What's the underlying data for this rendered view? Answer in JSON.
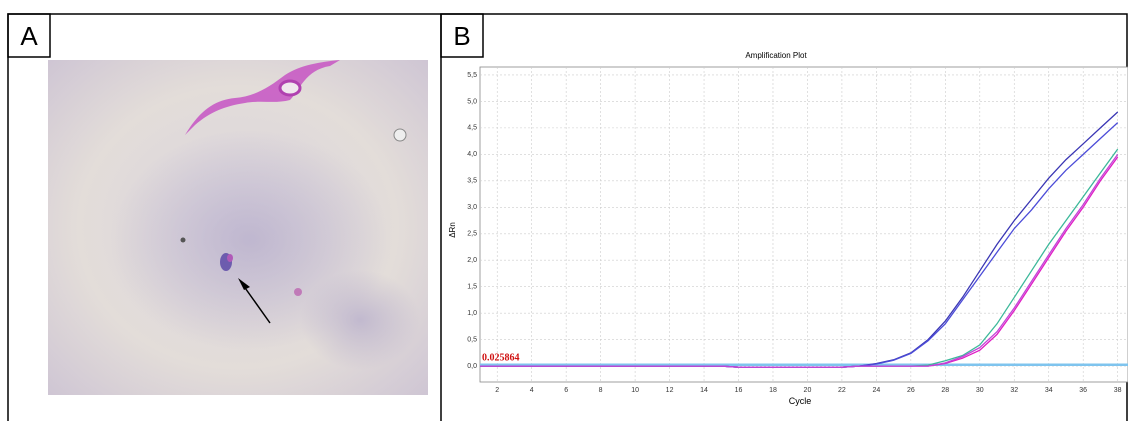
{
  "panel_labels": [
    "A",
    "B"
  ],
  "chart_data": {
    "type": "line",
    "title": "Amplification Plot",
    "x_label": "Cycle",
    "y_label": "ΔRn",
    "x": [
      1,
      2,
      3,
      4,
      5,
      6,
      7,
      8,
      9,
      10,
      11,
      12,
      13,
      14,
      15,
      16,
      17,
      18,
      19,
      20,
      21,
      22,
      23,
      24,
      25,
      26,
      27,
      28,
      29,
      30,
      31,
      32,
      33,
      34,
      35,
      36,
      37,
      38
    ],
    "series": [
      {
        "color": "#3a36b4",
        "values": [
          0,
          0,
          0,
          0,
          0,
          0,
          0,
          0,
          0,
          0,
          0,
          0,
          0,
          0,
          0,
          -0.02,
          -0.02,
          -0.02,
          -0.02,
          -0.02,
          -0.02,
          -0.02,
          0,
          0.05,
          0.12,
          0.25,
          0.5,
          0.85,
          1.3,
          1.8,
          2.3,
          2.75,
          3.15,
          3.55,
          3.9,
          4.2,
          4.5,
          4.8
        ]
      },
      {
        "color": "#4c4cd8",
        "values": [
          0,
          0,
          0,
          0,
          0,
          0,
          0,
          0,
          0,
          0,
          0,
          0,
          0,
          0,
          0,
          -0.02,
          -0.02,
          -0.02,
          -0.02,
          -0.02,
          -0.02,
          -0.02,
          0,
          0.04,
          0.11,
          0.24,
          0.48,
          0.8,
          1.25,
          1.7,
          2.15,
          2.6,
          2.95,
          3.35,
          3.7,
          4.0,
          4.3,
          4.6
        ]
      },
      {
        "color": "#3cb89a",
        "values": [
          0,
          0,
          0,
          0,
          0,
          0,
          0,
          0,
          0,
          0,
          0,
          0,
          0,
          0,
          0,
          -0.02,
          -0.02,
          -0.02,
          -0.02,
          -0.02,
          -0.02,
          -0.02,
          0,
          0,
          0,
          0,
          0.02,
          0.1,
          0.2,
          0.4,
          0.8,
          1.3,
          1.8,
          2.3,
          2.75,
          3.2,
          3.65,
          4.1
        ]
      },
      {
        "color": "#e01cc4",
        "values": [
          0,
          0,
          0,
          0,
          0,
          0,
          0,
          0,
          0,
          0,
          0,
          0,
          0,
          0,
          0,
          -0.02,
          -0.02,
          -0.02,
          -0.02,
          -0.02,
          -0.02,
          -0.02,
          0,
          0,
          0,
          0,
          0,
          0.05,
          0.15,
          0.3,
          0.6,
          1.05,
          1.55,
          2.05,
          2.55,
          3.0,
          3.5,
          3.95
        ]
      },
      {
        "color": "#c046d8",
        "values": [
          0,
          0,
          0,
          0,
          0,
          0,
          0,
          0,
          0,
          0,
          0,
          0,
          0,
          0,
          0,
          -0.02,
          -0.02,
          -0.02,
          -0.02,
          -0.02,
          -0.02,
          -0.02,
          0,
          0,
          0,
          0,
          0,
          0.06,
          0.18,
          0.35,
          0.65,
          1.1,
          1.6,
          2.1,
          2.6,
          3.05,
          3.55,
          4.0
        ]
      }
    ],
    "threshold": 0.025864,
    "threshold_color": "#7fc4ee",
    "threshold_label_color": "#d01010",
    "xlim": [
      1,
      38.6
    ],
    "ylim": [
      -0.3,
      5.65
    ],
    "xticks": [
      2,
      4,
      6,
      8,
      10,
      12,
      14,
      16,
      18,
      20,
      22,
      24,
      26,
      28,
      30,
      32,
      34,
      36,
      38
    ],
    "yticks": [
      {
        "value": 0,
        "label": "0,0"
      },
      {
        "value": 0.5,
        "label": "0,5"
      },
      {
        "value": 1,
        "label": "1,0"
      },
      {
        "value": 1.5,
        "label": "1,5"
      },
      {
        "value": 2,
        "label": "2,0"
      },
      {
        "value": 2.5,
        "label": "2,5"
      },
      {
        "value": 3,
        "label": "3,0"
      },
      {
        "value": 3.5,
        "label": "3,5"
      },
      {
        "value": 4,
        "label": "4,0"
      },
      {
        "value": 4.5,
        "label": "4,5"
      },
      {
        "value": 5,
        "label": "5,0"
      },
      {
        "value": 5.5,
        "label": "5,5"
      }
    ],
    "grid": true
  }
}
